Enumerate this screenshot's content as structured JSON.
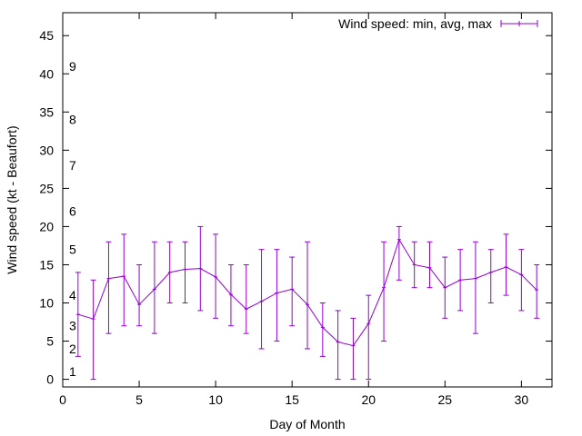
{
  "chart_data": {
    "type": "line",
    "xlabel": "Day of Month",
    "ylabel": "Wind speed (kt - Beaufort)",
    "xlim": [
      0,
      32
    ],
    "ylim": [
      -1,
      48
    ],
    "xticks": [
      "0",
      "5",
      "10",
      "15",
      "20",
      "25",
      "30"
    ],
    "yticks": [
      "0",
      "5",
      "10",
      "15",
      "20",
      "25",
      "30",
      "35",
      "40",
      "45"
    ],
    "grid": false,
    "legend_position": "top-right",
    "beaufort_labels": [
      {
        "label": "1",
        "y": 1
      },
      {
        "label": "2",
        "y": 4
      },
      {
        "label": "3",
        "y": 7
      },
      {
        "label": "4",
        "y": 11
      },
      {
        "label": "5",
        "y": 17
      },
      {
        "label": "6",
        "y": 22
      },
      {
        "label": "7",
        "y": 28
      },
      {
        "label": "8",
        "y": 34
      },
      {
        "label": "9",
        "y": 41
      }
    ],
    "series": [
      {
        "name": "Wind speed: min, avg, max",
        "color": "#9400d3",
        "x": [
          1,
          2,
          3,
          4,
          5,
          6,
          7,
          8,
          9,
          10,
          11,
          12,
          13,
          14,
          15,
          16,
          17,
          18,
          19,
          20,
          21,
          22,
          23,
          24,
          25,
          26,
          27,
          28,
          29,
          30,
          31
        ],
        "avg": [
          8.5,
          7.9,
          13.2,
          13.5,
          9.8,
          11.8,
          14.0,
          14.4,
          14.5,
          13.4,
          11.1,
          9.2,
          10.2,
          11.3,
          11.8,
          9.8,
          6.8,
          4.9,
          4.4,
          7.3,
          12.0,
          18.3,
          15.0,
          14.6,
          12.0,
          13.0,
          13.2,
          14.0,
          14.7,
          13.7,
          11.7
        ],
        "min": [
          3,
          0,
          6,
          7,
          7,
          6,
          10,
          10,
          9,
          8,
          7,
          6,
          4,
          5,
          7,
          4,
          3,
          0,
          0,
          0,
          5,
          13,
          12,
          12,
          8,
          9,
          6,
          10,
          11,
          9,
          8
        ],
        "max": [
          14,
          13,
          18,
          19,
          15,
          18,
          18,
          18,
          20,
          19,
          15,
          15,
          17,
          17,
          16,
          18,
          10,
          9,
          8,
          11,
          18,
          20,
          18,
          18,
          16,
          17,
          18,
          17,
          19,
          17,
          15
        ]
      }
    ]
  }
}
